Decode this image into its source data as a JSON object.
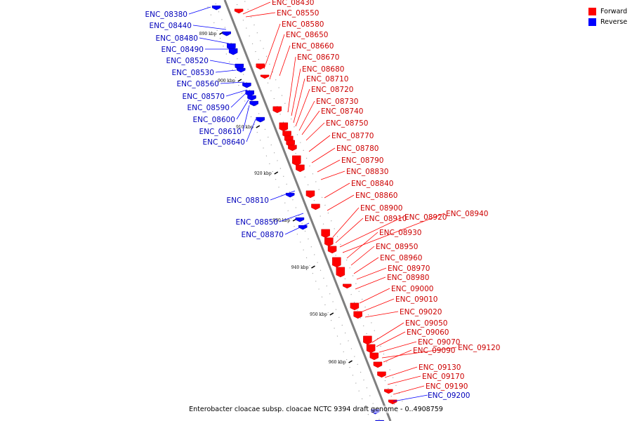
{
  "legend": [
    {
      "label": "Forward",
      "color": "#ff0000"
    },
    {
      "label": "Reverse",
      "color": "#0000ff"
    }
  ],
  "caption": "Enterobacter cloacae subsp. cloacae NCTC 9394 draft genome - 0..4908759",
  "ticks": [
    "890 kbp",
    "900 kbp",
    "910 kbp",
    "920 kbp",
    "930 kbp",
    "940 kbp",
    "950 kbp",
    "960 kbp"
  ],
  "reverse_genes": [
    "ENC_08380",
    "ENC_08440",
    "ENC_08480",
    "ENC_08490",
    "ENC_08520",
    "ENC_08530",
    "ENC_08560",
    "ENC_08570",
    "ENC_08590",
    "ENC_08600",
    "ENC_08610",
    "ENC_08640",
    "ENC_08810",
    "ENC_08850",
    "ENC_08870",
    "ENC_09200"
  ],
  "forward_genes": [
    "ENC_08430",
    "ENC_08550",
    "ENC_08580",
    "ENC_08650",
    "ENC_08660",
    "ENC_08670",
    "ENC_08680",
    "ENC_08710",
    "ENC_08720",
    "ENC_08730",
    "ENC_08740",
    "ENC_08750",
    "ENC_08770",
    "ENC_08780",
    "ENC_08790",
    "ENC_08830",
    "ENC_08840",
    "ENC_08860",
    "ENC_08900",
    "ENC_08910",
    "ENC_08920",
    "ENC_08940",
    "ENC_08930",
    "ENC_08950",
    "ENC_08960",
    "ENC_08970",
    "ENC_08980",
    "ENC_09000",
    "ENC_09010",
    "ENC_09020",
    "ENC_09050",
    "ENC_09060",
    "ENC_09070",
    "ENC_09120",
    "ENC_09090",
    "ENC_09130",
    "ENC_09170",
    "ENC_09190"
  ]
}
